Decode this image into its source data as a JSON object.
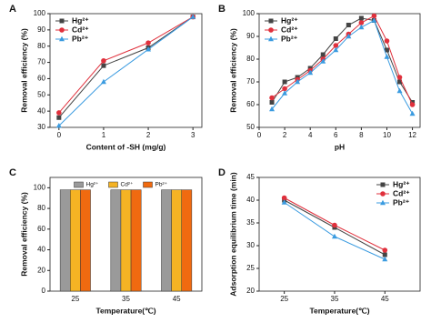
{
  "chart_data": [
    {
      "type": "line",
      "panel": "A",
      "xlabel": "Content of -SH (mg/g)",
      "ylabel": "Removal efficiency (%)",
      "x": [
        0,
        1,
        2,
        3
      ],
      "xlim": [
        -0.2,
        3.2
      ],
      "xticks": [
        0,
        1,
        2,
        3
      ],
      "ylim": [
        30,
        100
      ],
      "yticks": [
        30,
        40,
        50,
        60,
        70,
        80,
        90,
        100
      ],
      "legend": "upper left",
      "series": [
        {
          "name": "Hg²⁺",
          "color": "#444444",
          "marker": "square",
          "values": [
            36,
            68,
            79,
            98
          ]
        },
        {
          "name": "Cd²⁺",
          "color": "#e0303c",
          "marker": "circle",
          "values": [
            39,
            71,
            82,
            98
          ]
        },
        {
          "name": "Pb²⁺",
          "color": "#3a9be0",
          "marker": "triangle",
          "values": [
            31,
            58,
            78,
            98
          ]
        }
      ]
    },
    {
      "type": "line",
      "panel": "B",
      "xlabel": "pH",
      "ylabel": "Removal efficiency (%)",
      "x": [
        1,
        2,
        3,
        4,
        5,
        6,
        7,
        8,
        9,
        10,
        11,
        12
      ],
      "xlim": [
        0,
        12.6
      ],
      "xticks": [
        0,
        2,
        4,
        6,
        8,
        10,
        12
      ],
      "ylim": [
        50,
        100
      ],
      "yticks": [
        50,
        60,
        70,
        80,
        90,
        100
      ],
      "legend": "upper left",
      "series": [
        {
          "name": "Hg²⁺",
          "color": "#444444",
          "marker": "square",
          "values": [
            61,
            70,
            72,
            76,
            82,
            89,
            95,
            98,
            97,
            84,
            70,
            61
          ]
        },
        {
          "name": "Cd²⁺",
          "color": "#e0303c",
          "marker": "circle",
          "values": [
            63,
            67,
            71,
            75,
            80,
            86,
            91,
            96,
            99,
            88,
            72,
            60
          ]
        },
        {
          "name": "Pb²⁺",
          "color": "#3a9be0",
          "marker": "triangle",
          "values": [
            58,
            65,
            70,
            74,
            79,
            84,
            90,
            94,
            97,
            81,
            66,
            56
          ]
        }
      ]
    },
    {
      "type": "bar",
      "panel": "C",
      "xlabel": "Temperature(℃)",
      "ylabel": "Removal efficiency (%)",
      "categories": [
        "25",
        "35",
        "45"
      ],
      "ylim": [
        0,
        110
      ],
      "yticks": [
        0,
        20,
        40,
        60,
        80,
        100
      ],
      "legend": "upper center",
      "series": [
        {
          "name": "Hg²⁺",
          "color": "#9a9a9a",
          "values": [
            98,
            98,
            98
          ]
        },
        {
          "name": "Cd²⁺",
          "color": "#f5b324",
          "values": [
            98,
            98,
            98
          ]
        },
        {
          "name": "Pb²⁺",
          "color": "#f06a10",
          "values": [
            98,
            98,
            98
          ]
        }
      ]
    },
    {
      "type": "line",
      "panel": "D",
      "xlabel": "Temperature(℃)",
      "ylabel": "Adsorption equilibrium time (min)",
      "x": [
        25,
        35,
        45
      ],
      "xlim": [
        20,
        52
      ],
      "xticks": [
        25,
        35,
        45
      ],
      "ylim": [
        20,
        45
      ],
      "yticks": [
        20,
        25,
        30,
        35,
        40,
        45
      ],
      "legend": "upper right",
      "series": [
        {
          "name": "Hg²⁺",
          "color": "#444444",
          "marker": "square",
          "values": [
            40,
            34,
            28
          ]
        },
        {
          "name": "Cd²⁺",
          "color": "#e0303c",
          "marker": "circle",
          "values": [
            40.5,
            34.5,
            29
          ]
        },
        {
          "name": "Pb²⁺",
          "color": "#3a9be0",
          "marker": "triangle",
          "values": [
            39.5,
            32,
            27
          ]
        }
      ]
    }
  ]
}
